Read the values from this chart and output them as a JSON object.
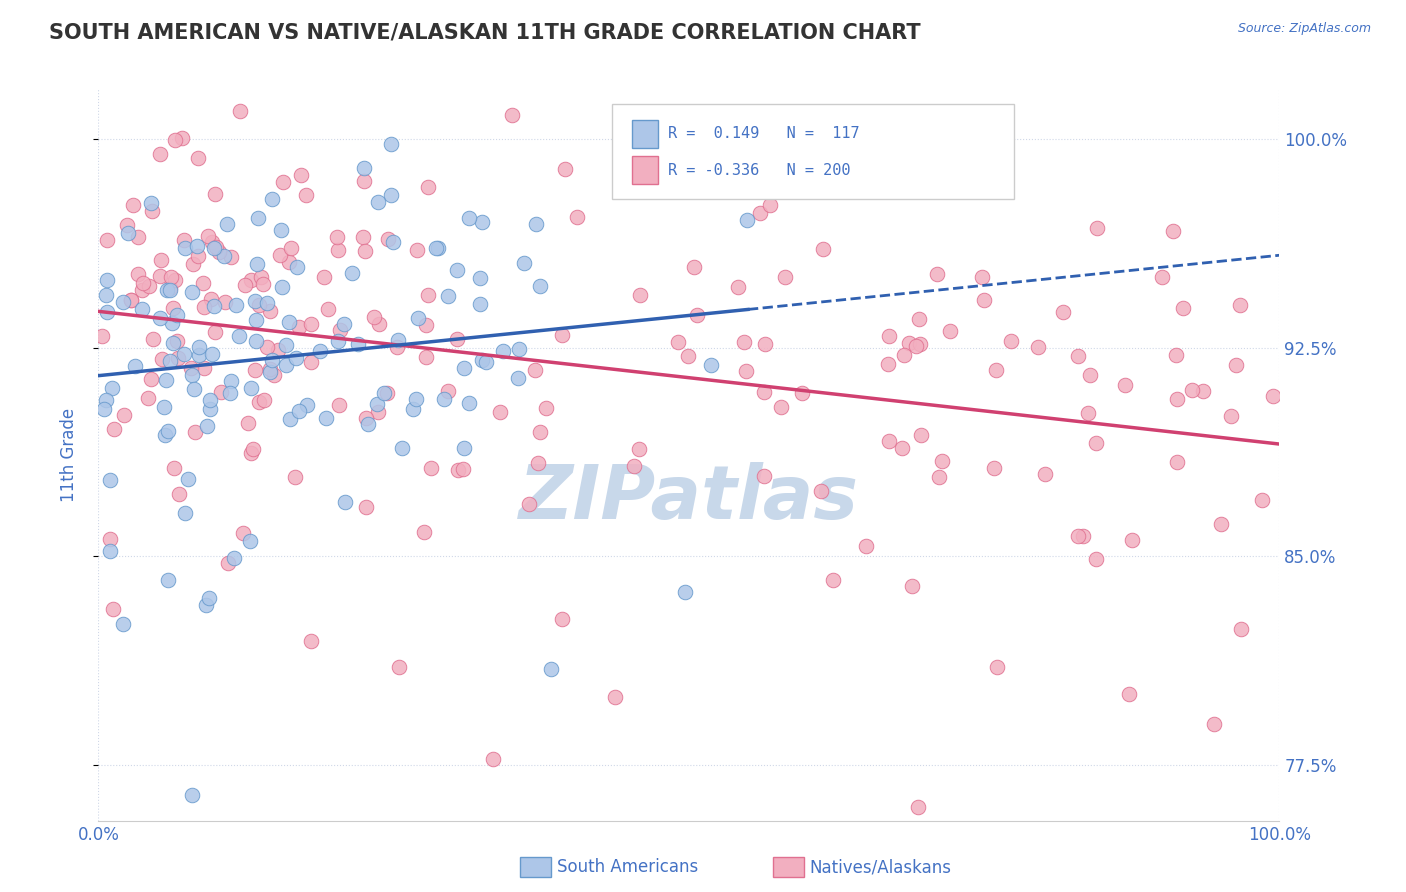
{
  "title": "SOUTH AMERICAN VS NATIVE/ALASKAN 11TH GRADE CORRELATION CHART",
  "source": "Source: ZipAtlas.com",
  "ylabel": "11th Grade",
  "xlim": [
    0.0,
    1.0
  ],
  "ylim": [
    0.755,
    1.018
  ],
  "yticks": [
    0.775,
    0.85,
    0.925,
    1.0
  ],
  "ytick_labels": [
    "77.5%",
    "85.0%",
    "92.5%",
    "100.0%"
  ],
  "xtick_labels": [
    "0.0%",
    "100.0%"
  ],
  "blue_R": 0.149,
  "blue_N": 117,
  "pink_R": -0.336,
  "pink_N": 200,
  "blue_color": "#adc6e8",
  "pink_color": "#f2afc0",
  "blue_edge_color": "#6699cc",
  "pink_edge_color": "#e07090",
  "blue_line_color": "#3060b0",
  "pink_line_color": "#d04070",
  "title_color": "#333333",
  "axis_color": "#4472c4",
  "watermark_color": "#c8d8ea",
  "background_color": "#ffffff",
  "grid_color": "#d0d8e8",
  "seed_blue": 7,
  "seed_pink": 13
}
